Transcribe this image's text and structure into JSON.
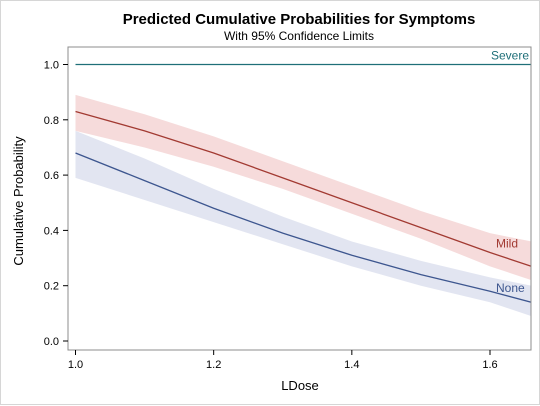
{
  "chart_data": {
    "type": "line",
    "title": "Predicted Cumulative Probabilities for Symptoms",
    "subtitle": "With 95% Confidence Limits",
    "xlabel": "LDose",
    "ylabel": "Cumulative Probability",
    "xlim": [
      0.99,
      1.66
    ],
    "ylim": [
      -0.03,
      1.06
    ],
    "xticks": [
      1.0,
      1.2,
      1.4,
      1.6
    ],
    "yticks": [
      0.0,
      0.2,
      0.4,
      0.6,
      0.8,
      1.0
    ],
    "xtick_labels": [
      "1.0",
      "1.2",
      "1.4",
      "1.6"
    ],
    "ytick_labels": [
      "0.0",
      "0.2",
      "0.4",
      "0.6",
      "0.8",
      "1.0"
    ],
    "grid": false,
    "legend": "inline labels at right end of each curve",
    "series": [
      {
        "name": "Severe",
        "color": "#1f6f78",
        "x": [
          1.0,
          1.66
        ],
        "y": [
          1.0,
          1.0
        ],
        "lower": [
          1.0,
          1.0
        ],
        "upper": [
          1.0,
          1.0
        ]
      },
      {
        "name": "Mild",
        "color": "#a23a32",
        "band_color": "#f5d5d5",
        "x": [
          1.0,
          1.1,
          1.2,
          1.3,
          1.4,
          1.5,
          1.6,
          1.66
        ],
        "y": [
          0.83,
          0.76,
          0.68,
          0.59,
          0.5,
          0.41,
          0.32,
          0.27
        ],
        "lower": [
          0.76,
          0.7,
          0.63,
          0.55,
          0.46,
          0.37,
          0.27,
          0.22
        ],
        "upper": [
          0.89,
          0.82,
          0.74,
          0.65,
          0.56,
          0.47,
          0.39,
          0.36
        ]
      },
      {
        "name": "None",
        "color": "#3d568f",
        "band_color": "#dde0ee",
        "x": [
          1.0,
          1.1,
          1.2,
          1.3,
          1.4,
          1.5,
          1.6,
          1.66
        ],
        "y": [
          0.68,
          0.58,
          0.48,
          0.39,
          0.31,
          0.24,
          0.18,
          0.14
        ],
        "lower": [
          0.59,
          0.51,
          0.43,
          0.35,
          0.27,
          0.2,
          0.14,
          0.09
        ],
        "upper": [
          0.76,
          0.66,
          0.55,
          0.45,
          0.36,
          0.29,
          0.23,
          0.2
        ]
      }
    ]
  }
}
